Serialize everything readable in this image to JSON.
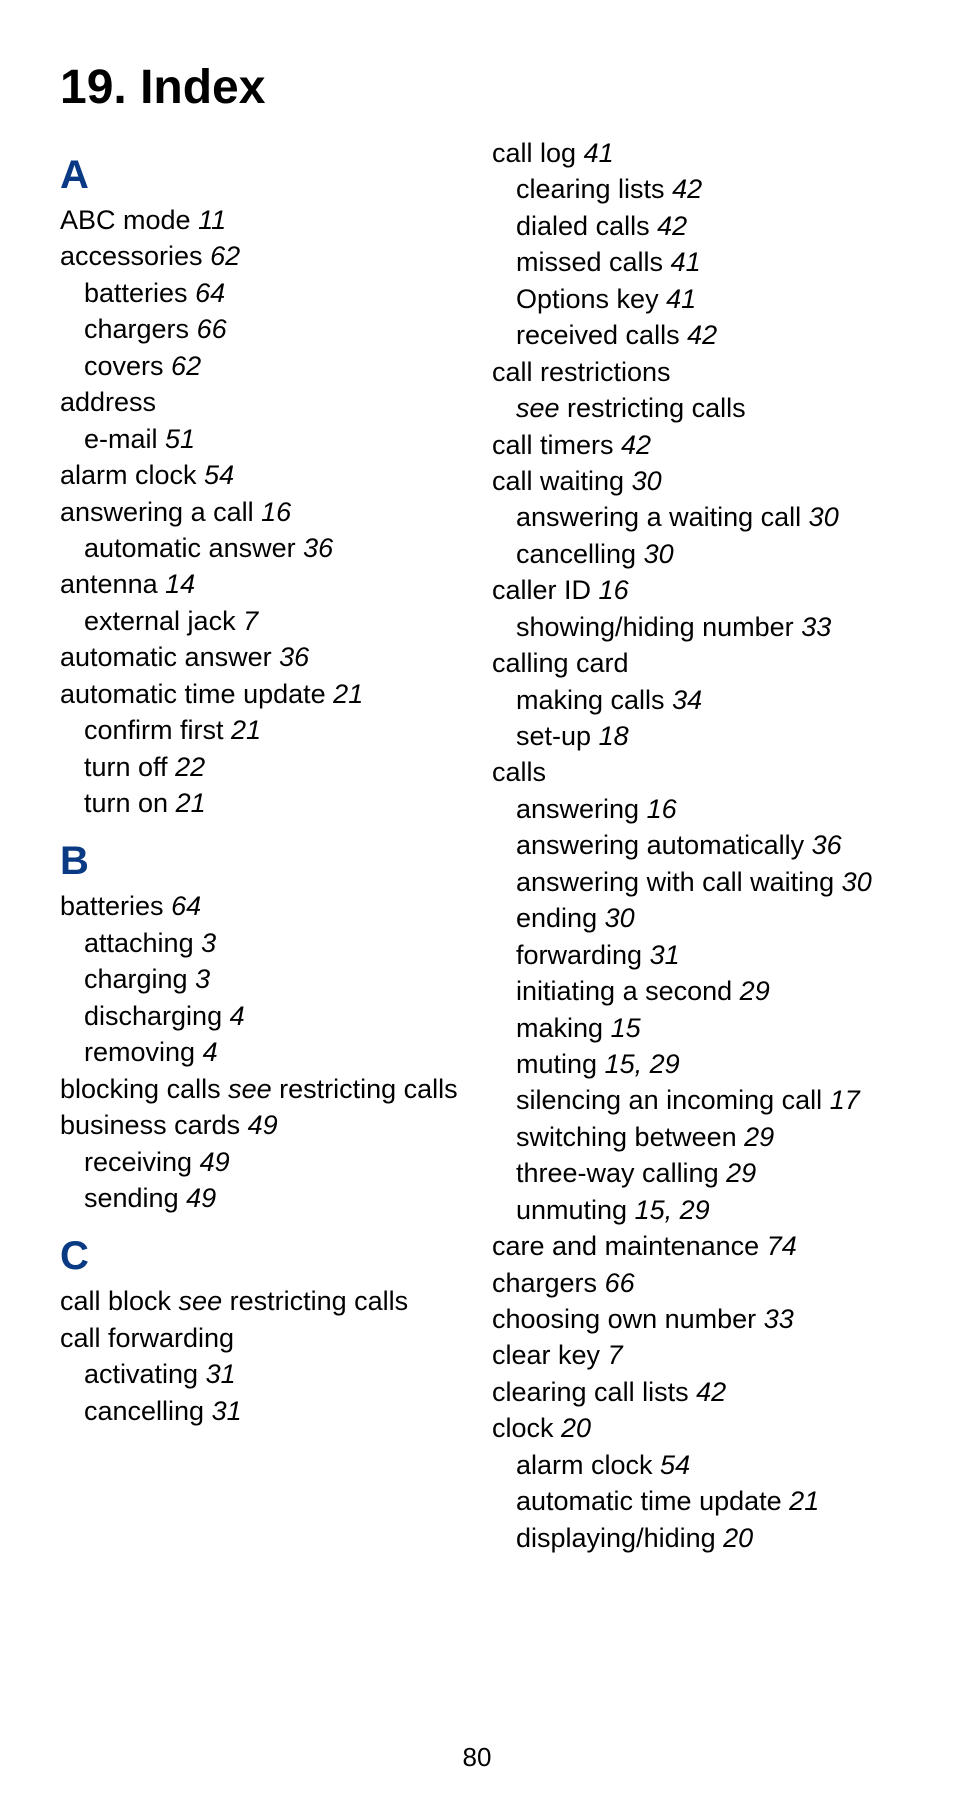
{
  "title": "19. Index",
  "page_number": "80",
  "colors": {
    "heading_blue": "#0a3a84",
    "text": "#000000",
    "background": "#ffffff"
  },
  "left_column": [
    {
      "type": "letter",
      "text": "A"
    },
    {
      "type": "entry",
      "level": 0,
      "text": "ABC mode",
      "page": "11"
    },
    {
      "type": "entry",
      "level": 0,
      "text": "accessories",
      "page": "62"
    },
    {
      "type": "entry",
      "level": 1,
      "text": "batteries",
      "page": "64"
    },
    {
      "type": "entry",
      "level": 1,
      "text": "chargers",
      "page": "66"
    },
    {
      "type": "entry",
      "level": 1,
      "text": "covers",
      "page": "62"
    },
    {
      "type": "entry",
      "level": 0,
      "text": "address"
    },
    {
      "type": "entry",
      "level": 1,
      "text": "e-mail",
      "page": "51"
    },
    {
      "type": "entry",
      "level": 0,
      "text": "alarm clock",
      "page": "54"
    },
    {
      "type": "entry",
      "level": 0,
      "text": "answering a call",
      "page": "16"
    },
    {
      "type": "entry",
      "level": 1,
      "text": "automatic answer",
      "page": "36"
    },
    {
      "type": "entry",
      "level": 0,
      "text": "antenna",
      "page": "14"
    },
    {
      "type": "entry",
      "level": 1,
      "text": "external jack",
      "page": "7"
    },
    {
      "type": "entry",
      "level": 0,
      "text": "automatic answer",
      "page": "36"
    },
    {
      "type": "entry",
      "level": 0,
      "text": "automatic time update",
      "page": "21"
    },
    {
      "type": "entry",
      "level": 1,
      "text": "confirm first",
      "page": "21"
    },
    {
      "type": "entry",
      "level": 1,
      "text": "turn off",
      "page": "22"
    },
    {
      "type": "entry",
      "level": 1,
      "text": "turn on",
      "page": "21"
    },
    {
      "type": "letter",
      "text": "B"
    },
    {
      "type": "entry",
      "level": 0,
      "text": "batteries",
      "page": "64"
    },
    {
      "type": "entry",
      "level": 1,
      "text": "attaching",
      "page": "3"
    },
    {
      "type": "entry",
      "level": 1,
      "text": "charging",
      "page": "3"
    },
    {
      "type": "entry",
      "level": 1,
      "text": "discharging",
      "page": "4"
    },
    {
      "type": "entry",
      "level": 1,
      "text": "removing",
      "page": "4"
    },
    {
      "type": "see",
      "level": 0,
      "pre": "blocking calls ",
      "seeword": "see",
      "post": " restricting calls"
    },
    {
      "type": "entry",
      "level": 0,
      "text": "business cards",
      "page": "49"
    },
    {
      "type": "entry",
      "level": 1,
      "text": "receiving",
      "page": "49"
    },
    {
      "type": "entry",
      "level": 1,
      "text": "sending",
      "page": "49"
    },
    {
      "type": "letter",
      "text": "C"
    },
    {
      "type": "see",
      "level": 0,
      "pre": "call block ",
      "seeword": "see",
      "post": " restricting calls"
    },
    {
      "type": "entry",
      "level": 0,
      "text": "call forwarding"
    },
    {
      "type": "entry",
      "level": 1,
      "text": "activating",
      "page": "31"
    },
    {
      "type": "entry",
      "level": 1,
      "text": "cancelling",
      "page": "31"
    }
  ],
  "right_column": [
    {
      "type": "entry",
      "level": 0,
      "text": "call log",
      "page": "41"
    },
    {
      "type": "entry",
      "level": 1,
      "text": "clearing lists",
      "page": "42"
    },
    {
      "type": "entry",
      "level": 1,
      "text": "dialed calls",
      "page": "42"
    },
    {
      "type": "entry",
      "level": 1,
      "text": "missed calls",
      "page": "41"
    },
    {
      "type": "entry",
      "level": 1,
      "text": "Options key",
      "page": "41"
    },
    {
      "type": "entry",
      "level": 1,
      "text": "received calls",
      "page": "42"
    },
    {
      "type": "entry",
      "level": 0,
      "text": "call restrictions"
    },
    {
      "type": "see",
      "level": 1,
      "pre": "",
      "seeword": "see",
      "post": " restricting calls"
    },
    {
      "type": "entry",
      "level": 0,
      "text": "call timers",
      "page": "42"
    },
    {
      "type": "entry",
      "level": 0,
      "text": "call waiting",
      "page": "30"
    },
    {
      "type": "entry",
      "level": 1,
      "text": "answering a waiting call",
      "page": "30"
    },
    {
      "type": "entry",
      "level": 1,
      "text": "cancelling",
      "page": "30"
    },
    {
      "type": "entry",
      "level": 0,
      "text": "caller ID",
      "page": "16"
    },
    {
      "type": "entry",
      "level": 1,
      "text": "showing/hiding number",
      "page": "33"
    },
    {
      "type": "entry",
      "level": 0,
      "text": "calling card"
    },
    {
      "type": "entry",
      "level": 1,
      "text": "making calls",
      "page": "34"
    },
    {
      "type": "entry",
      "level": 1,
      "text": "set-up",
      "page": "18"
    },
    {
      "type": "entry",
      "level": 0,
      "text": "calls"
    },
    {
      "type": "entry",
      "level": 1,
      "text": "answering",
      "page": "16"
    },
    {
      "type": "entry",
      "level": 1,
      "text": "answering automatically",
      "page": "36"
    },
    {
      "type": "entry",
      "level": 1,
      "hang": 2,
      "text": "answering with call waiting",
      "page": "30"
    },
    {
      "type": "entry",
      "level": 1,
      "text": "ending",
      "page": "30"
    },
    {
      "type": "entry",
      "level": 1,
      "text": "forwarding",
      "page": "31"
    },
    {
      "type": "entry",
      "level": 1,
      "text": "initiating a second",
      "page": "29"
    },
    {
      "type": "entry",
      "level": 1,
      "text": "making",
      "page": "15"
    },
    {
      "type": "entry",
      "level": 1,
      "text": "muting",
      "page": "15, 29"
    },
    {
      "type": "entry",
      "level": 1,
      "text": "silencing an incoming call",
      "page": "17"
    },
    {
      "type": "entry",
      "level": 1,
      "text": "switching between",
      "page": "29"
    },
    {
      "type": "entry",
      "level": 1,
      "text": "three-way calling",
      "page": "29"
    },
    {
      "type": "entry",
      "level": 1,
      "text": "unmuting",
      "page": "15, 29"
    },
    {
      "type": "entry",
      "level": 0,
      "text": "care and maintenance",
      "page": "74"
    },
    {
      "type": "entry",
      "level": 0,
      "text": "chargers",
      "page": "66"
    },
    {
      "type": "entry",
      "level": 0,
      "text": "choosing own number",
      "page": "33"
    },
    {
      "type": "entry",
      "level": 0,
      "text": "clear key",
      "page": "7"
    },
    {
      "type": "entry",
      "level": 0,
      "text": "clearing call lists",
      "page": "42"
    },
    {
      "type": "entry",
      "level": 0,
      "text": "clock",
      "page": "20"
    },
    {
      "type": "entry",
      "level": 1,
      "text": "alarm clock",
      "page": "54"
    },
    {
      "type": "entry",
      "level": 1,
      "text": "automatic time update",
      "page": "21"
    },
    {
      "type": "entry",
      "level": 1,
      "text": "displaying/hiding",
      "page": "20"
    }
  ]
}
